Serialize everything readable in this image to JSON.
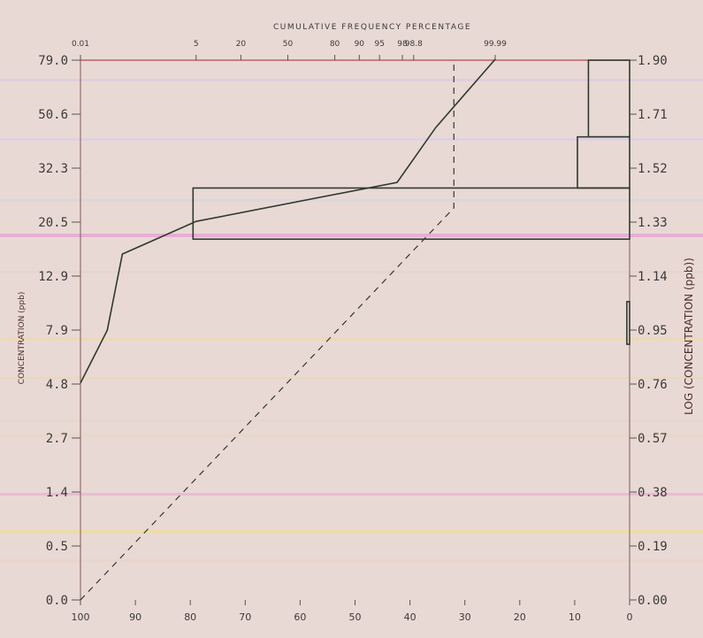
{
  "chart_data": {
    "type": "line",
    "title": "CUMULATIVE FREQUENCY PERCENTAGE",
    "ylabel_left": "CONCENTRATION (ppb)",
    "ylabel_right": "LOG (CONCENTRATION (ppb))",
    "left_ticks": [
      "79.0",
      "50.6",
      "32.3",
      "20.5",
      "12.9",
      "7.9",
      "4.8",
      "2.7",
      "1.4",
      "0.5",
      "0.0"
    ],
    "right_ticks": [
      "1.90",
      "1.71",
      "1.52",
      "1.33",
      "1.14",
      "0.95",
      "0.76",
      "0.57",
      "0.38",
      "0.19",
      "0.00"
    ],
    "top_ticks": [
      "0.01",
      "5",
      "20",
      "50",
      "80",
      "90",
      "95",
      "98",
      "98.8",
      "99.99"
    ],
    "bottom_ticks": [
      "100",
      "90",
      "80",
      "70",
      "60",
      "50",
      "40",
      "30",
      "20",
      "10",
      "0"
    ],
    "log_axis_range": [
      0.0,
      1.9
    ],
    "bottom_axis_range": [
      100,
      0
    ],
    "series": [
      {
        "style": "solid",
        "x_axis": "top",
        "points": [
          [
            0.01,
            4.8
          ],
          [
            0.06,
            7.9
          ],
          [
            0.15,
            15.5
          ],
          [
            5,
            20.5
          ],
          [
            97.5,
            28.5
          ],
          [
            99.6,
            45.0
          ],
          [
            99.99,
            79.0
          ]
        ]
      },
      {
        "style": "dashed",
        "x_axis": "bottom",
        "points": [
          [
            100,
            0.0
          ],
          [
            32,
            1.38
          ],
          [
            32,
            1.9
          ]
        ]
      }
    ],
    "histogram": {
      "x_axis": "bottom",
      "bars": [
        {
          "log_from": 1.27,
          "log_to": 1.45,
          "value": 79.5
        },
        {
          "log_from": 1.45,
          "log_to": 1.63,
          "value": 9.5
        },
        {
          "log_from": 1.63,
          "log_to": 1.9,
          "value": 7.5
        },
        {
          "log_from": 0.9,
          "log_to": 1.05,
          "value": 0.5
        }
      ]
    },
    "grid": false,
    "colors": {
      "paper": "#e9d9d4",
      "ink": "#2f3a30",
      "text": "#3a3a3a",
      "axis_label": "#4a2e2e"
    }
  }
}
